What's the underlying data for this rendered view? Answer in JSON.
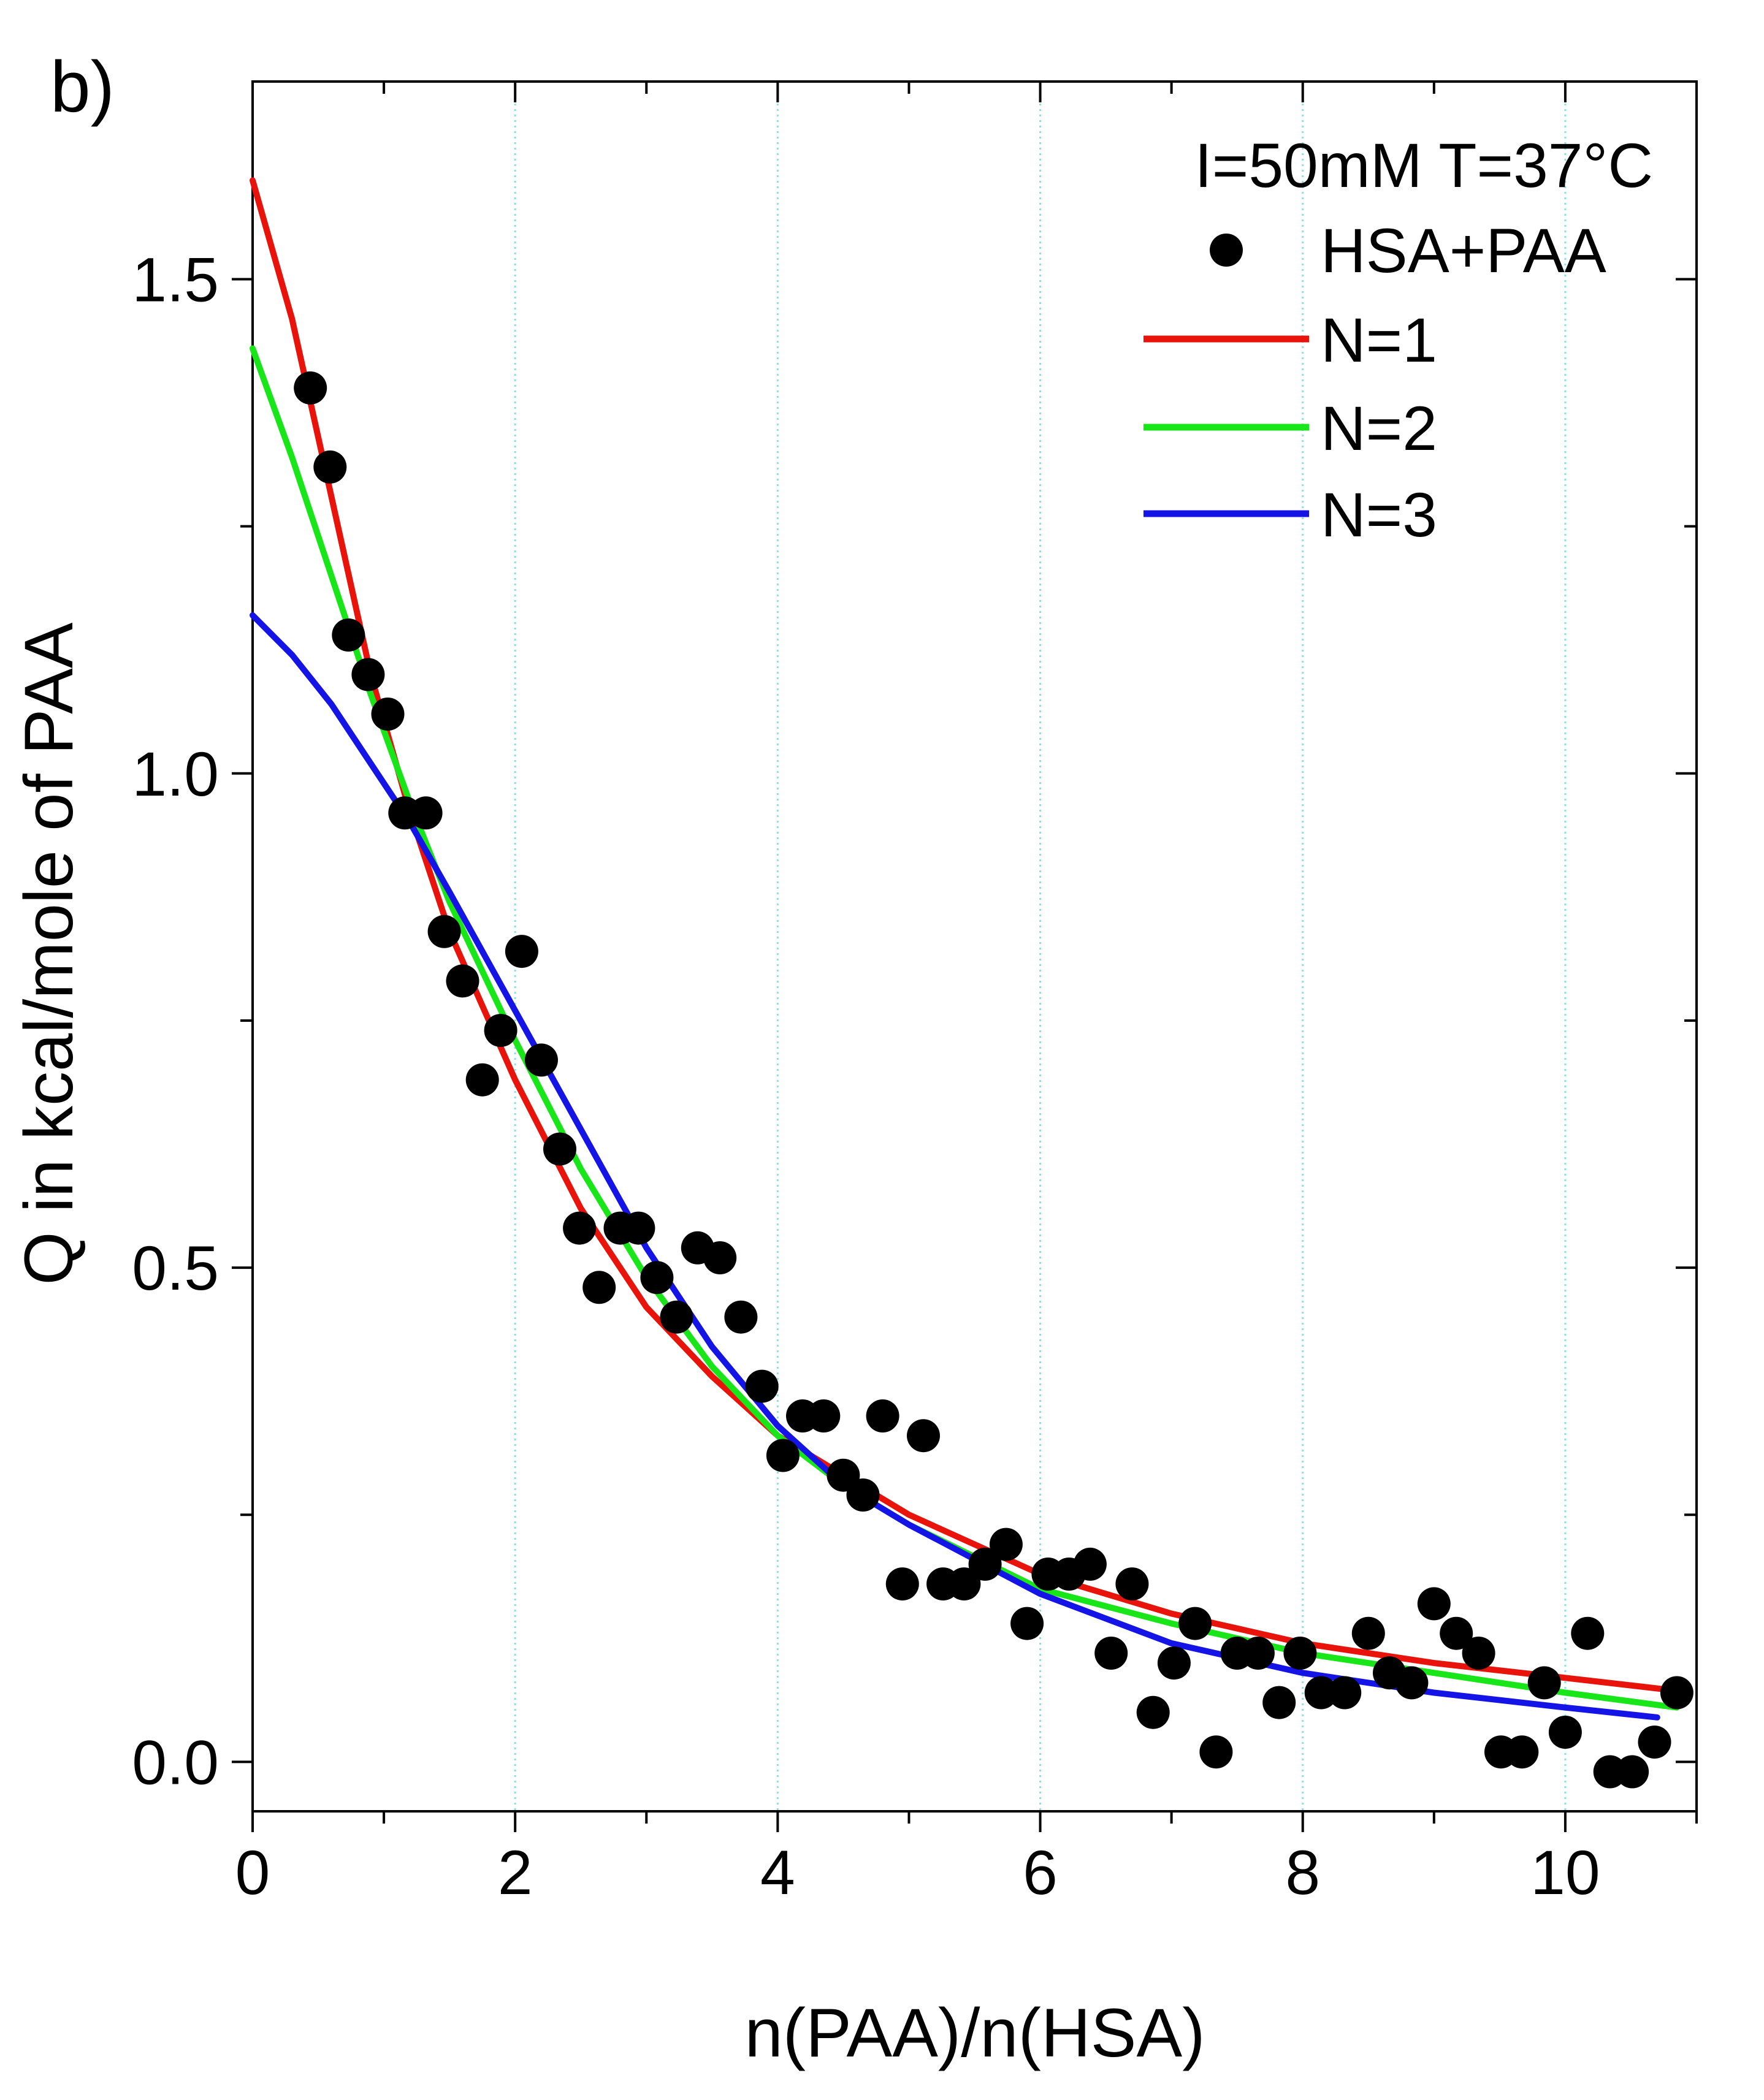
{
  "panel_label": "b)",
  "chart_data": {
    "type": "scatter",
    "xlabel": "n(PAA)/n(HSA)",
    "ylabel": "Q in kcal/mole of PAA",
    "xlim": [
      0,
      11
    ],
    "ylim": [
      -0.05,
      1.7
    ],
    "x_ticks": [
      0,
      2,
      4,
      6,
      8,
      10
    ],
    "x_tick_labels": [
      "0",
      "2",
      "4",
      "6",
      "8",
      "10"
    ],
    "y_ticks": [
      0.0,
      0.5,
      1.0,
      1.5
    ],
    "y_tick_labels": [
      "0.0",
      "0.5",
      "1.0",
      "1.5"
    ],
    "grid": "vertical dotted at major x ticks",
    "legend": {
      "title": "I=50mM T=37°C",
      "placement": "top-right",
      "entries": [
        "HSA+PAA",
        "N=1",
        "N=2",
        "N=3"
      ]
    },
    "series": [
      {
        "name": "HSA+PAA",
        "kind": "scatter",
        "color": "#000000",
        "x": [
          0.44,
          0.59,
          0.73,
          0.88,
          1.03,
          1.16,
          1.32,
          1.46,
          1.6,
          1.75,
          1.89,
          2.05,
          2.2,
          2.34,
          2.49,
          2.64,
          2.8,
          2.94,
          3.08,
          3.23,
          3.39,
          3.56,
          3.72,
          3.88,
          4.04,
          4.19,
          4.35,
          4.5,
          4.65,
          4.8,
          4.95,
          5.11,
          5.26,
          5.42,
          5.58,
          5.74,
          5.9,
          6.06,
          6.22,
          6.38,
          6.54,
          6.7,
          6.86,
          7.02,
          7.18,
          7.34,
          7.5,
          7.66,
          7.82,
          7.98,
          8.14,
          8.32,
          8.5,
          8.66,
          8.83,
          9.0,
          9.17,
          9.34,
          9.51,
          9.67,
          9.84,
          10.0,
          10.17,
          10.34,
          10.51,
          10.68,
          10.85
        ],
        "y": [
          1.39,
          1.31,
          1.14,
          1.1,
          1.06,
          0.96,
          0.96,
          0.84,
          0.79,
          0.69,
          0.74,
          0.82,
          0.71,
          0.62,
          0.54,
          0.48,
          0.54,
          0.54,
          0.49,
          0.45,
          0.52,
          0.51,
          0.45,
          0.38,
          0.31,
          0.35,
          0.35,
          0.29,
          0.27,
          0.35,
          0.18,
          0.33,
          0.18,
          0.18,
          0.2,
          0.22,
          0.14,
          0.19,
          0.19,
          0.2,
          0.11,
          0.18,
          0.05,
          0.1,
          0.14,
          0.01,
          0.11,
          0.11,
          0.06,
          0.11,
          0.07,
          0.07,
          0.13,
          0.09,
          0.08,
          0.16,
          0.13,
          0.11,
          0.01,
          0.01,
          0.08,
          0.03,
          0.13,
          -0.01,
          -0.01,
          0.02,
          0.07
        ]
      },
      {
        "name": "N=1",
        "kind": "line",
        "color": "#e8140c",
        "x": [
          0,
          0.3,
          0.6,
          0.9,
          1.2,
          1.5,
          2.0,
          2.5,
          3.0,
          3.5,
          4.0,
          4.5,
          5.0,
          6.0,
          7.0,
          8.0,
          9.0,
          10.0,
          10.85
        ],
        "y": [
          1.6,
          1.46,
          1.28,
          1.1,
          0.96,
          0.84,
          0.69,
          0.56,
          0.46,
          0.39,
          0.33,
          0.29,
          0.25,
          0.19,
          0.15,
          0.12,
          0.1,
          0.085,
          0.072
        ]
      },
      {
        "name": "N=2",
        "kind": "line",
        "color": "#19e619",
        "x": [
          0,
          0.3,
          0.6,
          0.9,
          1.2,
          1.5,
          2.0,
          2.5,
          3.0,
          3.5,
          4.0,
          4.5,
          5.0,
          6.0,
          7.0,
          8.0,
          9.0,
          10.0,
          10.85
        ],
        "y": [
          1.43,
          1.32,
          1.2,
          1.08,
          0.97,
          0.87,
          0.73,
          0.6,
          0.49,
          0.4,
          0.33,
          0.28,
          0.24,
          0.175,
          0.14,
          0.11,
          0.09,
          0.07,
          0.055
        ]
      },
      {
        "name": "N=3",
        "kind": "line",
        "color": "#1414e6",
        "x": [
          0,
          0.3,
          0.6,
          0.9,
          1.2,
          1.5,
          2.0,
          2.5,
          3.0,
          3.5,
          4.0,
          4.5,
          5.0,
          6.0,
          7.0,
          8.0,
          9.0,
          10.0,
          10.7
        ],
        "y": [
          1.16,
          1.12,
          1.07,
          1.01,
          0.95,
          0.88,
          0.76,
          0.64,
          0.52,
          0.42,
          0.34,
          0.28,
          0.24,
          0.17,
          0.12,
          0.09,
          0.07,
          0.055,
          0.045
        ]
      }
    ]
  }
}
